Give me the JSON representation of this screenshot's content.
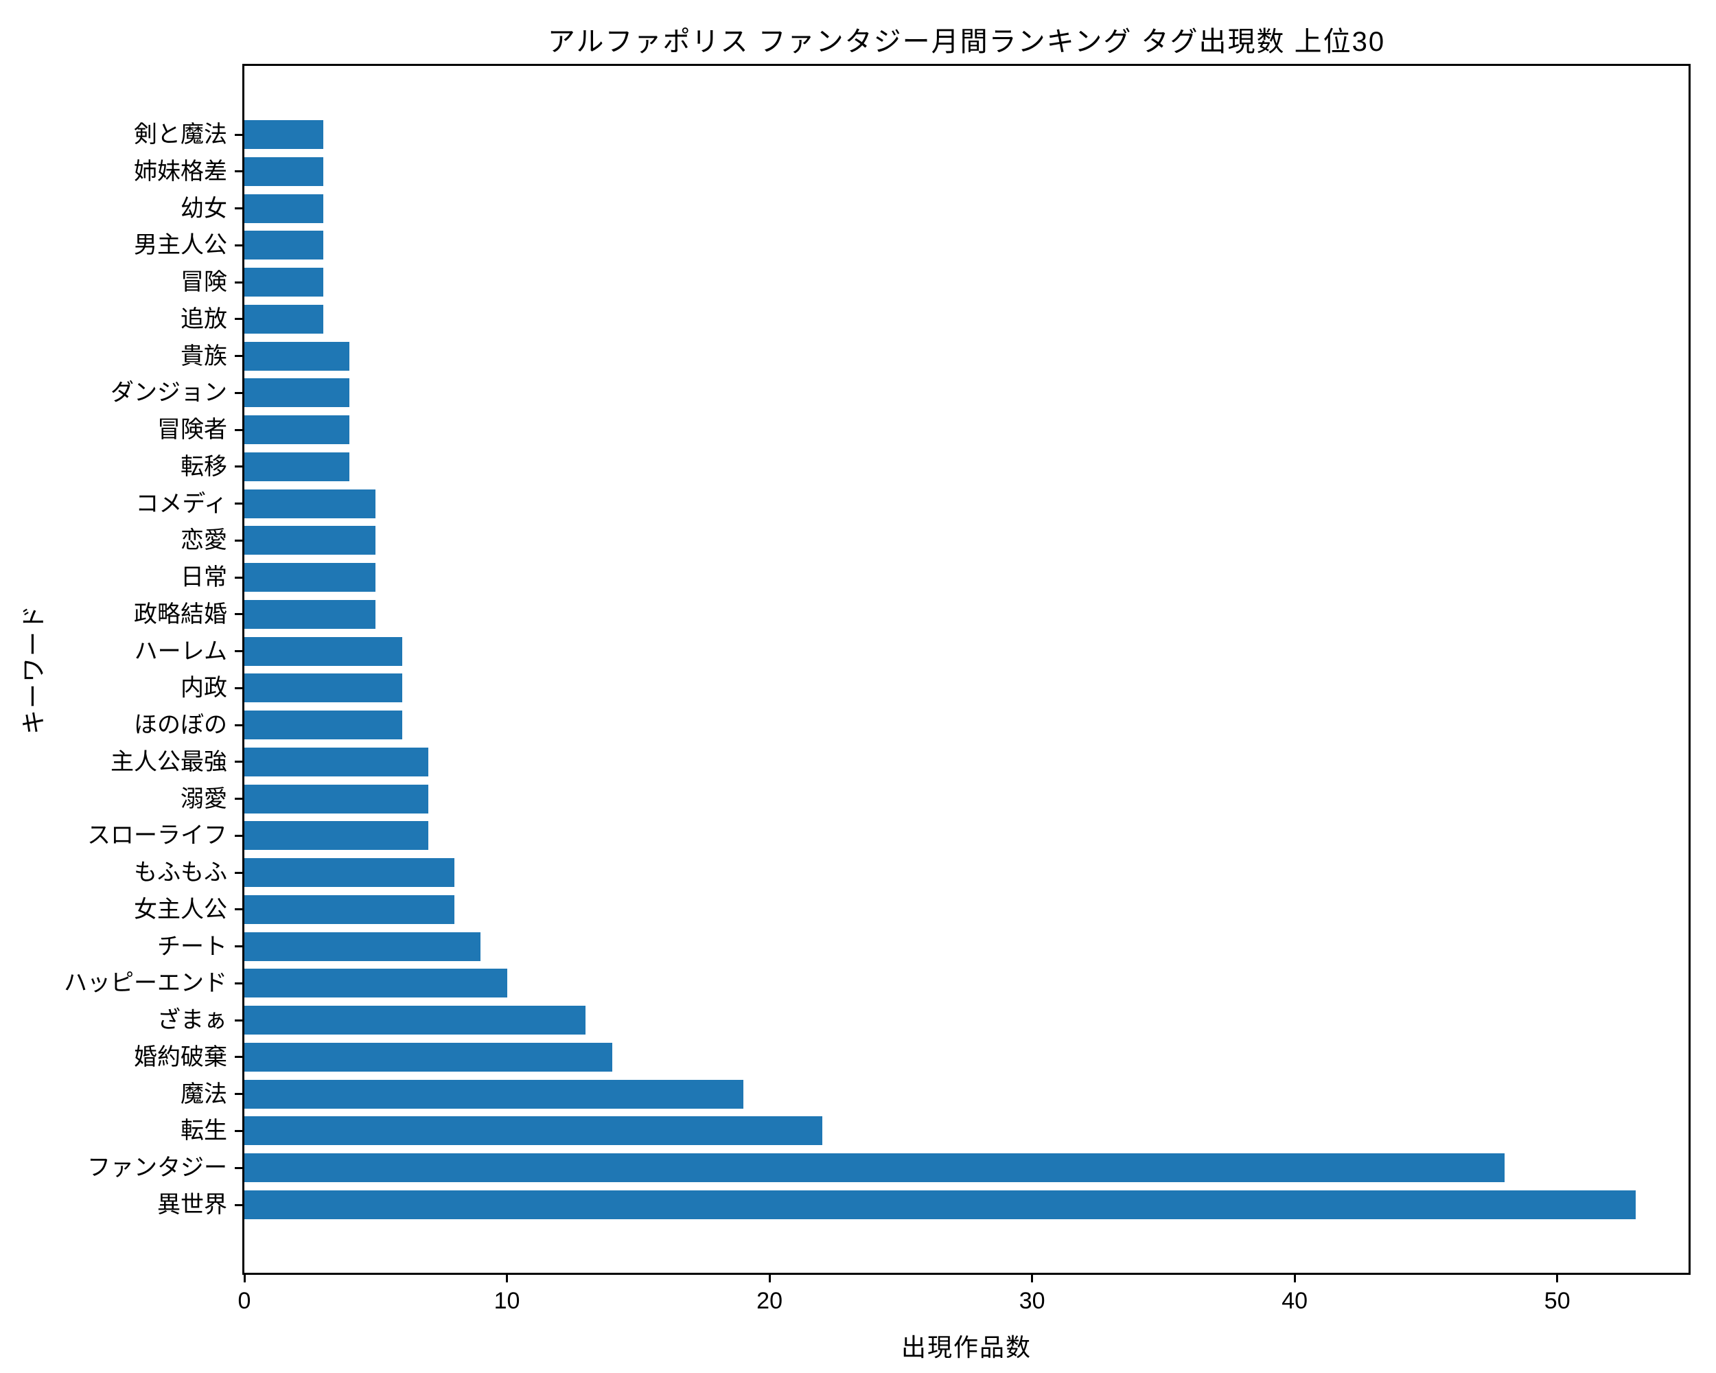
{
  "title": "アルファポリス ファンタジー月間ランキング タグ出現数 上位30",
  "axes": {
    "xlabel": "出現作品数",
    "ylabel": "キーワード"
  },
  "chart_data": {
    "type": "bar",
    "orientation": "horizontal",
    "title": "アルファポリス ファンタジー月間ランキング タグ出現数 上位30",
    "xlabel": "出現作品数",
    "ylabel": "キーワード",
    "categories_top_to_bottom": [
      "剣と魔法",
      "姉妹格差",
      "幼女",
      "男主人公",
      "冒険",
      "追放",
      "貴族",
      "ダンジョン",
      "冒険者",
      "転移",
      "コメディ",
      "恋愛",
      "日常",
      "政略結婚",
      "ハーレム",
      "内政",
      "ほのぼの",
      "主人公最強",
      "溺愛",
      "スローライフ",
      "もふもふ",
      "女主人公",
      "チート",
      "ハッピーエンド",
      "ざまぁ",
      "婚約破棄",
      "魔法",
      "転生",
      "ファンタジー",
      "異世界"
    ],
    "values_top_to_bottom": [
      3,
      3,
      3,
      3,
      3,
      3,
      4,
      4,
      4,
      4,
      5,
      5,
      5,
      5,
      6,
      6,
      6,
      7,
      7,
      7,
      8,
      8,
      9,
      10,
      13,
      14,
      19,
      22,
      48,
      53
    ],
    "xticks": [
      0,
      10,
      20,
      30,
      40,
      50
    ],
    "xlim": [
      0,
      55
    ],
    "grid": false,
    "legend": null,
    "bar_color": "#1f77b4",
    "spine_color": "#000000",
    "background_color": "#ffffff"
  }
}
